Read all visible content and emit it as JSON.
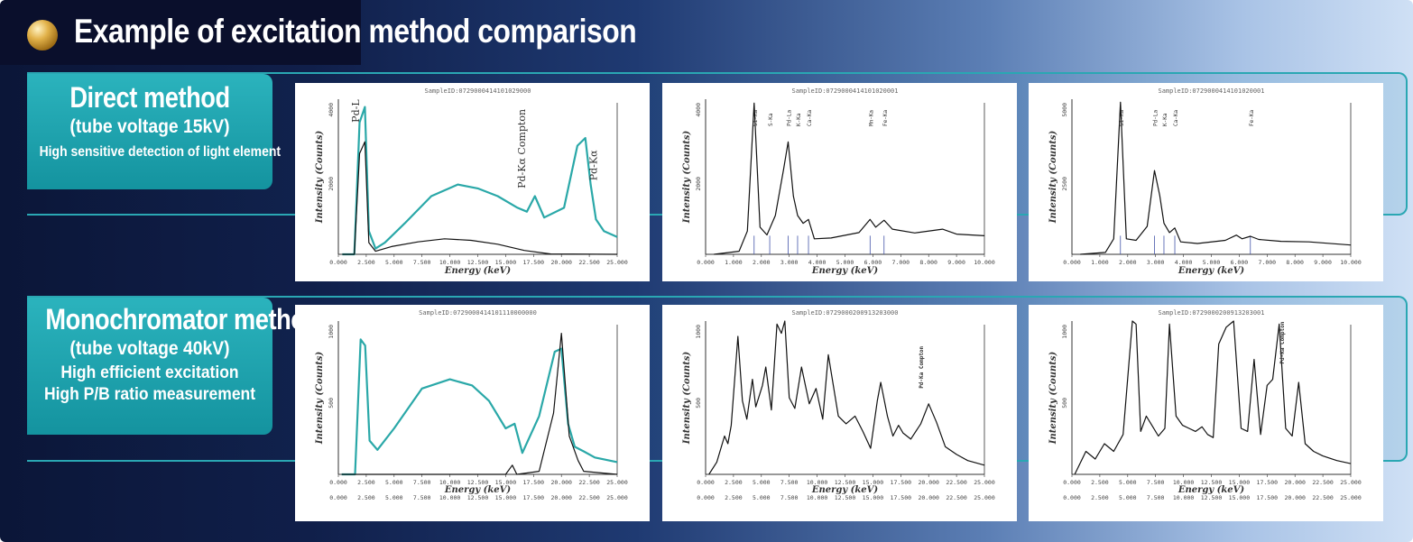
{
  "header": {
    "title": "Example of excitation method comparison"
  },
  "colors": {
    "teal": "#2bb3bd",
    "navy": "#0b1638",
    "spectrum_teal": "#2aa8a8",
    "spectrum_black": "#111111",
    "peak_line": "#4455aa"
  },
  "rows": [
    {
      "label": "Direct method",
      "sublabel": "(tube voltage 15kV)",
      "notes": [
        "High sensitive detection of light element"
      ]
    },
    {
      "label": "Monochromator method",
      "sublabel": "(tube voltage 40kV)",
      "notes": [
        "High efficient excitation",
        "High P/B ratio measurement"
      ]
    }
  ],
  "chart_data": [
    {
      "id": "direct-1",
      "type": "line",
      "title": "SampleID:0729000414101029000",
      "xlabel": "Energy (keV)",
      "ylabel": "Intensity (Counts)",
      "xlim": [
        0,
        21.0
      ],
      "ylim": [
        0,
        4000
      ],
      "xticks": [
        "0.000",
        "2.500",
        "5.000",
        "7.500",
        "10.000",
        "12.500",
        "15.000",
        "17.500",
        "20.000",
        "22.500",
        "25.000"
      ],
      "yticks": [
        "4000",
        "2000"
      ],
      "annotations": [
        "Pd-L",
        "Pd-Kα Compton",
        "Pd-Kα"
      ],
      "series": [
        {
          "name": "teal",
          "x": [
            0.3,
            1.2,
            1.6,
            2.0,
            2.3,
            2.8,
            3.5,
            5,
            7,
            9,
            10.5,
            12,
            13.5,
            14.2,
            14.8,
            15.5,
            17,
            18,
            18.6,
            19.0,
            19.4,
            20,
            21
          ],
          "y": [
            0,
            0,
            3400,
            3800,
            600,
            150,
            300,
            800,
            1500,
            1800,
            1700,
            1500,
            1200,
            1100,
            1500,
            950,
            1200,
            2800,
            3000,
            1800,
            900,
            600,
            450
          ]
        },
        {
          "name": "black",
          "x": [
            0.3,
            1.2,
            1.6,
            2.0,
            2.3,
            2.8,
            4,
            6,
            8,
            10,
            12,
            14,
            16,
            21
          ],
          "y": [
            0,
            0,
            2600,
            2900,
            300,
            80,
            200,
            320,
            400,
            360,
            260,
            100,
            10,
            0
          ]
        }
      ]
    },
    {
      "id": "direct-2",
      "type": "line",
      "title": "SampleID:0729000414101020001",
      "xlabel": "Energy (keV)",
      "ylabel": "Intensity (Counts)",
      "xlim": [
        0,
        10.0
      ],
      "ylim": [
        0,
        4000
      ],
      "xticks": [
        "0.000",
        "1.000",
        "2.000",
        "3.000",
        "4.000",
        "5.000",
        "6.000",
        "7.000",
        "8.000",
        "9.000",
        "10.000"
      ],
      "yticks": [
        "4000",
        "2000"
      ],
      "peaks": [
        {
          "x": 1.74,
          "label": "Si-Ka"
        },
        {
          "x": 2.3,
          "label": "S-Ka"
        },
        {
          "x": 2.96,
          "label": "Pd-La"
        },
        {
          "x": 3.3,
          "label": "K-Ka"
        },
        {
          "x": 3.69,
          "label": "Ca-Ka"
        },
        {
          "x": 5.9,
          "label": "Mn-Ka"
        },
        {
          "x": 6.4,
          "label": "Fe-Ka"
        }
      ],
      "series": [
        {
          "name": "black",
          "x": [
            0.3,
            1.2,
            1.5,
            1.74,
            1.95,
            2.2,
            2.5,
            2.8,
            2.96,
            3.15,
            3.3,
            3.5,
            3.69,
            3.9,
            4.5,
            5.5,
            5.9,
            6.1,
            6.4,
            6.7,
            7.5,
            8.5,
            9.0,
            10
          ],
          "y": [
            0,
            80,
            600,
            3900,
            700,
            500,
            1000,
            2200,
            2900,
            1500,
            1000,
            800,
            900,
            400,
            420,
            560,
            900,
            700,
            880,
            650,
            550,
            650,
            520,
            480
          ]
        }
      ]
    },
    {
      "id": "direct-3",
      "type": "line",
      "title": "SampleID:0729000414101020001",
      "xlabel": "Energy (keV)",
      "ylabel": "Intensity (Counts)",
      "xlim": [
        0,
        10.0
      ],
      "ylim": [
        0,
        5000
      ],
      "xticks": [
        "0.000",
        "1.000",
        "2.000",
        "3.000",
        "4.000",
        "5.000",
        "6.000",
        "7.000",
        "8.000",
        "9.000",
        "10.000"
      ],
      "yticks": [
        "5000",
        "2500"
      ],
      "peaks": [
        {
          "x": 1.74,
          "label": "Si-Ka"
        },
        {
          "x": 2.96,
          "label": "Pd-La"
        },
        {
          "x": 3.3,
          "label": "K-Ka"
        },
        {
          "x": 3.69,
          "label": "Ca-Ka"
        },
        {
          "x": 6.4,
          "label": "Fe-Ka"
        }
      ],
      "series": [
        {
          "name": "black",
          "x": [
            0.3,
            1.2,
            1.5,
            1.74,
            1.95,
            2.3,
            2.7,
            2.96,
            3.15,
            3.3,
            3.5,
            3.69,
            3.9,
            4.5,
            5.5,
            5.9,
            6.1,
            6.4,
            6.7,
            7.5,
            8.5,
            10
          ],
          "y": [
            0,
            60,
            500,
            4900,
            500,
            450,
            900,
            2700,
            1900,
            1000,
            700,
            850,
            400,
            350,
            450,
            620,
            500,
            580,
            480,
            420,
            400,
            300
          ]
        }
      ]
    },
    {
      "id": "mono-1",
      "type": "line",
      "title": "SampleID:0729000414101110000000",
      "xlabel": "Energy (keV)",
      "ylabel": "Intensity (Counts)",
      "xlim": [
        0,
        25.0
      ],
      "ylim": [
        0,
        1000
      ],
      "xticks": [
        "0.000",
        "2.500",
        "5.000",
        "7.500",
        "10.000",
        "12.500",
        "15.000",
        "17.500",
        "20.000",
        "22.500",
        "25.000"
      ],
      "yticks": [
        "1000",
        "500"
      ],
      "series": [
        {
          "name": "teal",
          "x": [
            0.3,
            1.5,
            2.0,
            2.4,
            2.8,
            3.5,
            5,
            7.5,
            10,
            12,
            13.5,
            15,
            15.8,
            16.5,
            18,
            19.4,
            20.0,
            20.6,
            21.2,
            22,
            23,
            25
          ],
          "y": [
            0,
            0,
            880,
            840,
            220,
            160,
            300,
            560,
            620,
            580,
            480,
            300,
            330,
            140,
            380,
            800,
            820,
            330,
            180,
            150,
            110,
            80
          ]
        },
        {
          "name": "black",
          "x": [
            0.3,
            15,
            15.6,
            16,
            18,
            19.3,
            20.0,
            20.7,
            21.5,
            22,
            25
          ],
          "y": [
            0,
            0,
            60,
            0,
            20,
            400,
            920,
            250,
            90,
            20,
            0
          ]
        }
      ]
    },
    {
      "id": "mono-2",
      "type": "line",
      "title": "SampleID:0729000200913203000",
      "xlabel": "Energy (keV)",
      "ylabel": "Intensity (Counts)",
      "xlim": [
        0,
        25.0
      ],
      "ylim": [
        0,
        1000
      ],
      "xticks": [
        "0.000",
        "2.500",
        "5.000",
        "7.500",
        "10.000",
        "12.500",
        "15.000",
        "17.500",
        "20.000",
        "22.500",
        "25.000"
      ],
      "yticks": [
        "1000",
        "500"
      ],
      "annotations": [
        "Pd-Ka Compton"
      ],
      "series": [
        {
          "name": "black",
          "x": [
            0.3,
            1.0,
            1.7,
            2.0,
            2.3,
            2.9,
            3.3,
            3.7,
            4.2,
            4.5,
            5.1,
            5.4,
            5.9,
            6.4,
            6.8,
            7.1,
            7.5,
            8.0,
            8.6,
            9.3,
            9.9,
            10.5,
            11.0,
            11.9,
            12.6,
            13.4,
            14.1,
            14.8,
            15.4,
            15.7,
            16.3,
            16.8,
            17.3,
            17.7,
            18.4,
            19.3,
            20.0,
            20.7,
            21.5,
            22.5,
            23.5,
            25
          ],
          "y": [
            0,
            80,
            250,
            200,
            320,
            900,
            480,
            360,
            620,
            440,
            580,
            700,
            420,
            980,
            920,
            1000,
            500,
            430,
            700,
            460,
            560,
            360,
            780,
            380,
            330,
            380,
            280,
            170,
            480,
            600,
            380,
            250,
            320,
            270,
            230,
            330,
            460,
            340,
            180,
            130,
            90,
            60
          ]
        }
      ]
    },
    {
      "id": "mono-3",
      "type": "line",
      "title": "SampleID:0729000200913203001",
      "xlabel": "Energy (keV)",
      "ylabel": "Intensity (Counts)",
      "xlim": [
        0,
        30.0
      ],
      "ylim": [
        0,
        1000
      ],
      "xticks": [
        "0.000",
        "2.500",
        "5.000",
        "7.500",
        "10.000",
        "12.500",
        "15.000",
        "17.500",
        "20.000",
        "22.500",
        "25.000"
      ],
      "yticks": [
        "1000",
        "500"
      ],
      "annotations": [
        "Pd-Ka Compton"
      ],
      "series": [
        {
          "name": "black",
          "x": [
            0.3,
            1.5,
            2.5,
            3.5,
            4.5,
            5.5,
            6.5,
            6.9,
            7.4,
            8.0,
            8.6,
            9.3,
            10.0,
            10.5,
            11.2,
            11.9,
            12.6,
            13.3,
            14.0,
            14.6,
            15.2,
            15.8,
            16.6,
            17.4,
            18.2,
            18.9,
            19.6,
            20.3,
            21.0,
            21.6,
            22.3,
            23.0,
            23.7,
            24.4,
            25.1,
            26,
            27,
            28.5,
            30
          ],
          "y": [
            0,
            150,
            100,
            200,
            150,
            260,
            1000,
            980,
            280,
            380,
            320,
            250,
            300,
            980,
            380,
            320,
            300,
            280,
            310,
            260,
            240,
            850,
            960,
            1000,
            300,
            280,
            750,
            260,
            580,
            620,
            980,
            300,
            250,
            600,
            200,
            150,
            120,
            90,
            70
          ]
        }
      ]
    }
  ]
}
